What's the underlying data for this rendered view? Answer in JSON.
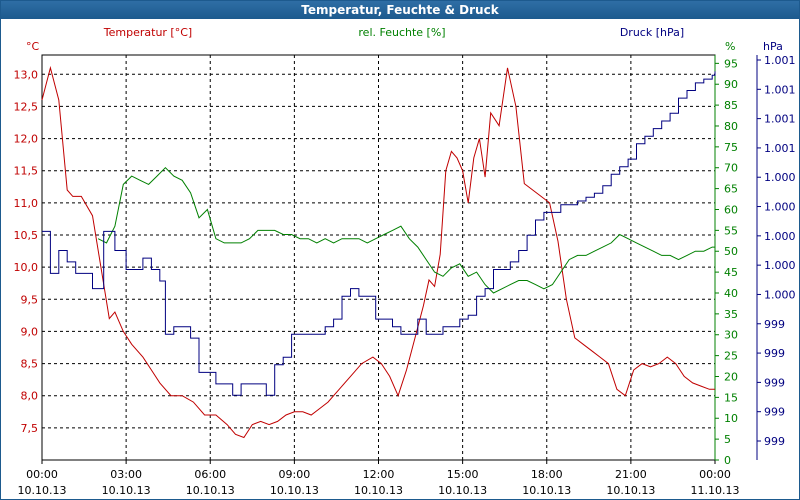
{
  "title": "Temperatur, Feuchte & Druck",
  "chart_data": {
    "type": "line",
    "title": "Temperatur, Feuchte & Druck",
    "x_labels": [
      {
        "time": "00:00",
        "date": "10.10.13"
      },
      {
        "time": "03:00",
        "date": "10.10.13"
      },
      {
        "time": "06:00",
        "date": "10.10.13"
      },
      {
        "time": "09:00",
        "date": "10.10.13"
      },
      {
        "time": "12:00",
        "date": "10.10.13"
      },
      {
        "time": "15:00",
        "date": "10.10.13"
      },
      {
        "time": "18:00",
        "date": "10.10.13"
      },
      {
        "time": "21:00",
        "date": "10.10.13"
      },
      {
        "time": "00:00",
        "date": "11.10.13"
      }
    ],
    "xlim": [
      0,
      24
    ],
    "axes": {
      "temperature": {
        "unit": "°C",
        "legend": "Temperatur [°C]",
        "color": "#c00000",
        "ylim": [
          7.0,
          13.3
        ],
        "ticks": [
          7.5,
          8.0,
          8.5,
          9.0,
          9.5,
          10.0,
          10.5,
          11.0,
          11.5,
          12.0,
          12.5,
          13.0
        ],
        "tick_labels": [
          "7,5",
          "8,0",
          "8,5",
          "9,0",
          "9,5",
          "10,0",
          "10,5",
          "11,0",
          "11,5",
          "12,0",
          "12,5",
          "13,0"
        ]
      },
      "humidity": {
        "unit": "%",
        "legend": "rel. Feuchte [%]",
        "color": "#008000",
        "ylim": [
          0,
          97
        ],
        "ticks": [
          0,
          5,
          10,
          15,
          20,
          25,
          30,
          35,
          40,
          45,
          50,
          55,
          60,
          65,
          70,
          75,
          80,
          85,
          90,
          95
        ],
        "tick_labels": [
          "0",
          "5",
          "10",
          "15",
          "20",
          "25",
          "30",
          "35",
          "40",
          "45",
          "50",
          "55",
          "60",
          "65",
          "70",
          "75",
          "80",
          "85",
          "90",
          "95"
        ]
      },
      "pressure": {
        "unit": "hPa",
        "legend": "Druck [hPa]",
        "color": "#000080",
        "tick_labels": [
          "1.001",
          "1.001",
          "1.001",
          "1.001",
          "1.000",
          "1.000",
          "1.000",
          "1.000",
          "1.000",
          "999",
          "999",
          "999",
          "999",
          "999"
        ]
      }
    },
    "series": [
      {
        "name": "Temperatur [°C]",
        "axis": "temperature",
        "x": [
          0,
          0.3,
          0.6,
          0.9,
          1.1,
          1.4,
          1.8,
          2.1,
          2.4,
          2.6,
          2.9,
          3.2,
          3.6,
          3.9,
          4.2,
          4.6,
          5.0,
          5.4,
          5.8,
          6.2,
          6.6,
          6.9,
          7.2,
          7.5,
          7.8,
          8.1,
          8.4,
          8.7,
          9.0,
          9.3,
          9.6,
          9.9,
          10.2,
          10.6,
          11.0,
          11.4,
          11.8,
          12.1,
          12.4,
          12.7,
          13.0,
          13.3,
          13.6,
          13.8,
          14.0,
          14.2,
          14.4,
          14.6,
          14.8,
          15.0,
          15.2,
          15.4,
          15.6,
          15.8,
          16.0,
          16.3,
          16.6,
          16.9,
          17.2,
          17.5,
          17.8,
          18.1,
          18.4,
          18.7,
          19.0,
          19.3,
          19.6,
          19.9,
          20.2,
          20.5,
          20.8,
          21.1,
          21.4,
          21.7,
          22.0,
          22.3,
          22.6,
          22.9,
          23.2,
          23.5,
          23.8,
          24.0
        ],
        "y": [
          12.6,
          13.1,
          12.6,
          11.2,
          11.1,
          11.1,
          10.8,
          10.0,
          9.2,
          9.3,
          9.0,
          8.8,
          8.6,
          8.4,
          8.2,
          8.0,
          8.0,
          7.9,
          7.7,
          7.7,
          7.55,
          7.4,
          7.35,
          7.55,
          7.6,
          7.55,
          7.6,
          7.7,
          7.75,
          7.75,
          7.7,
          7.8,
          7.9,
          8.1,
          8.3,
          8.5,
          8.6,
          8.5,
          8.3,
          8.0,
          8.4,
          8.9,
          9.4,
          9.8,
          9.7,
          10.2,
          11.5,
          11.8,
          11.7,
          11.5,
          11.0,
          11.7,
          12.0,
          11.4,
          12.4,
          12.2,
          13.1,
          12.5,
          11.3,
          11.2,
          11.1,
          11.0,
          10.4,
          9.5,
          8.9,
          8.8,
          8.7,
          8.6,
          8.5,
          8.1,
          8.0,
          8.4,
          8.5,
          8.45,
          8.5,
          8.6,
          8.5,
          8.3,
          8.2,
          8.15,
          8.1,
          8.1
        ]
      },
      {
        "name": "rel. Feuchte [%]",
        "axis": "humidity",
        "x": [
          2.0,
          2.3,
          2.6,
          2.9,
          3.2,
          3.5,
          3.8,
          4.1,
          4.4,
          4.7,
          5.0,
          5.3,
          5.6,
          5.9,
          6.2,
          6.5,
          6.8,
          7.1,
          7.4,
          7.7,
          8.0,
          8.3,
          8.6,
          8.9,
          9.2,
          9.5,
          9.8,
          10.1,
          10.4,
          10.7,
          11.0,
          11.3,
          11.6,
          11.9,
          12.2,
          12.5,
          12.8,
          13.1,
          13.4,
          13.7,
          14.0,
          14.3,
          14.6,
          14.9,
          15.2,
          15.5,
          15.8,
          16.1,
          16.4,
          16.7,
          17.0,
          17.3,
          17.6,
          17.9,
          18.2,
          18.5,
          18.8,
          19.1,
          19.4,
          19.7,
          20.0,
          20.3,
          20.6,
          20.9,
          21.2,
          21.5,
          21.8,
          22.1,
          22.4,
          22.7,
          23.0,
          23.3,
          23.6,
          23.9,
          24.0
        ],
        "y": [
          53,
          52,
          56,
          66,
          68,
          67,
          66,
          68,
          70,
          68,
          67,
          64,
          58,
          60,
          53,
          52,
          52,
          52,
          53,
          55,
          55,
          55,
          54,
          54,
          53,
          53,
          52,
          53,
          52,
          53,
          53,
          53,
          52,
          53,
          54,
          55,
          56,
          53,
          51,
          48,
          45,
          44,
          46,
          47,
          44,
          45,
          42,
          40,
          41,
          42,
          43,
          43,
          42,
          41,
          42,
          45,
          48,
          49,
          49,
          50,
          51,
          52,
          54,
          53,
          52,
          51,
          50,
          49,
          49,
          48,
          49,
          50,
          50,
          51,
          51
        ]
      },
      {
        "name": "Druck [hPa]",
        "axis": "pressure",
        "yrange_pct": [
          0,
          100
        ],
        "x": [
          0,
          0.3,
          0.6,
          0.9,
          1.2,
          1.5,
          1.8,
          2.0,
          2.2,
          2.4,
          2.6,
          2.8,
          3.0,
          3.3,
          3.6,
          3.9,
          4.2,
          4.4,
          4.7,
          5.0,
          5.3,
          5.6,
          5.9,
          6.2,
          6.5,
          6.8,
          7.1,
          7.4,
          7.7,
          8.0,
          8.3,
          8.6,
          8.9,
          9.2,
          9.5,
          9.8,
          10.1,
          10.4,
          10.7,
          11.0,
          11.3,
          11.6,
          11.9,
          12.2,
          12.5,
          12.8,
          13.1,
          13.4,
          13.7,
          14.0,
          14.3,
          14.6,
          14.9,
          15.2,
          15.5,
          15.8,
          16.1,
          16.4,
          16.7,
          17.0,
          17.3,
          17.6,
          17.9,
          18.2,
          18.5,
          18.8,
          19.1,
          19.4,
          19.7,
          20.0,
          20.3,
          20.6,
          20.9,
          21.2,
          21.5,
          21.8,
          22.1,
          22.4,
          22.7,
          23.0,
          23.3,
          23.6,
          23.9,
          24.0
        ],
        "y": [
          55,
          44,
          50,
          47,
          44,
          44,
          40,
          40,
          55,
          55,
          50,
          50,
          45,
          45,
          48,
          45,
          42,
          28,
          30,
          30,
          27,
          18,
          18,
          15,
          15,
          12,
          15,
          15,
          15,
          12,
          20,
          22,
          28,
          28,
          28,
          28,
          30,
          32,
          38,
          40,
          38,
          38,
          32,
          32,
          30,
          28,
          28,
          32,
          28,
          28,
          30,
          30,
          32,
          33,
          38,
          40,
          45,
          45,
          47,
          50,
          54,
          58,
          60,
          60,
          62,
          62,
          63,
          64,
          65,
          67,
          70,
          72,
          74,
          78,
          80,
          82,
          84,
          86,
          90,
          92,
          94,
          95,
          96,
          97
        ]
      }
    ]
  }
}
